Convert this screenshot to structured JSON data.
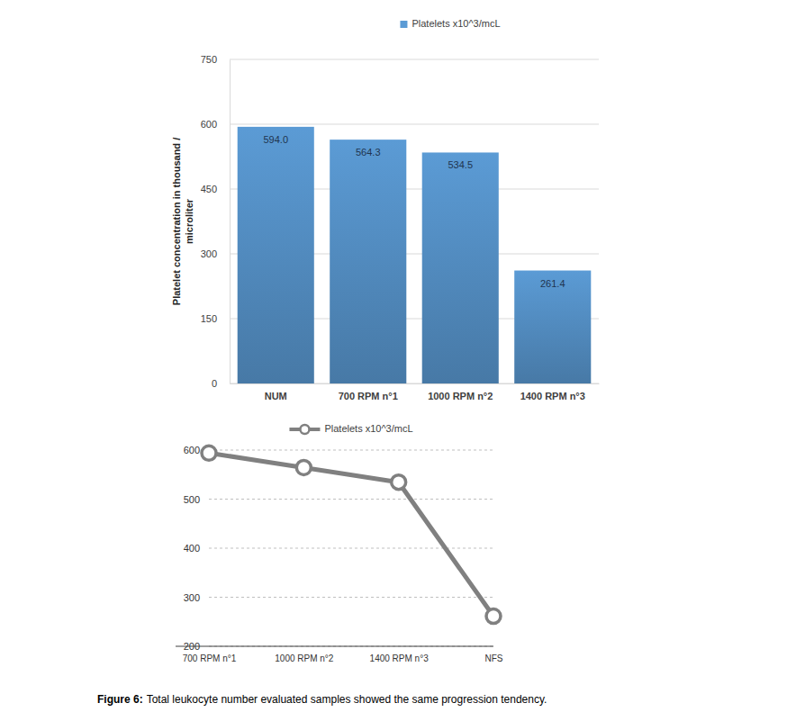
{
  "chart_data": [
    {
      "type": "bar",
      "y_label": "Platelet concentration in thousand / microliter",
      "categories": [
        "NUM",
        "700 RPM n°1",
        "1000 RPM n°2",
        "1400 RPM n°3"
      ],
      "series": [
        {
          "name": "Platelets x10^3/mcL",
          "color": "#5b9bd5",
          "values": [
            594.0,
            564.3,
            534.5,
            261.4
          ],
          "value_labels": [
            "594.0",
            "564.3",
            "534.5",
            "261.4"
          ]
        }
      ],
      "ylim": [
        0,
        750
      ],
      "yticks": [
        0,
        150,
        300,
        450,
        600,
        750
      ],
      "grid": true,
      "legend": "top",
      "data_labels": true
    },
    {
      "type": "line",
      "categories": [
        "700 RPM n°1",
        "1000 RPM n°2",
        "1400 RPM n°3",
        "NFS"
      ],
      "series": [
        {
          "name": "Platelets x10^3/mcL",
          "color": "#808080",
          "marker": "circle",
          "values": [
            594.0,
            564.3,
            534.5,
            261.4
          ]
        }
      ],
      "ylim": [
        200,
        600
      ],
      "yticks": [
        200,
        300,
        400,
        500,
        600
      ],
      "grid": true,
      "legend": "top"
    }
  ],
  "caption": {
    "label": "Figure 6:",
    "text": "Total leukocyte number evaluated samples showed the same progression tendency."
  }
}
